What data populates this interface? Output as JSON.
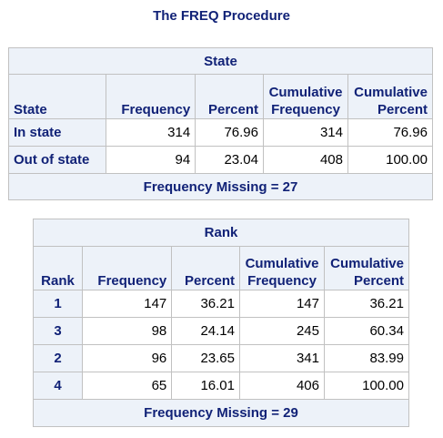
{
  "procedure_title": "The FREQ Procedure",
  "tables": [
    {
      "title": "State",
      "columns": [
        "State",
        "Frequency",
        "Percent",
        "Cumulative Frequency",
        "Cumulative Percent"
      ],
      "rows": [
        {
          "label": "In state",
          "frequency": "314",
          "percent": "76.96",
          "cum_frequency": "314",
          "cum_percent": "76.96"
        },
        {
          "label": "Out of state",
          "frequency": "94",
          "percent": "23.04",
          "cum_frequency": "408",
          "cum_percent": "100.00"
        }
      ],
      "footer": "Frequency Missing = 27"
    },
    {
      "title": "Rank",
      "columns": [
        "Rank",
        "Frequency",
        "Percent",
        "Cumulative Frequency",
        "Cumulative Percent"
      ],
      "rows": [
        {
          "label": "1",
          "frequency": "147",
          "percent": "36.21",
          "cum_frequency": "147",
          "cum_percent": "36.21"
        },
        {
          "label": "3",
          "frequency": "98",
          "percent": "24.14",
          "cum_frequency": "245",
          "cum_percent": "60.34"
        },
        {
          "label": "2",
          "frequency": "96",
          "percent": "23.65",
          "cum_frequency": "341",
          "cum_percent": "83.99"
        },
        {
          "label": "4",
          "frequency": "65",
          "percent": "16.01",
          "cum_frequency": "406",
          "cum_percent": "100.00"
        }
      ],
      "footer": "Frequency Missing = 29"
    }
  ],
  "colors": {
    "header_text": "#112277",
    "header_bg": "#edf2f9",
    "border": "#c1c1c1",
    "cell_bg": "#ffffff"
  }
}
